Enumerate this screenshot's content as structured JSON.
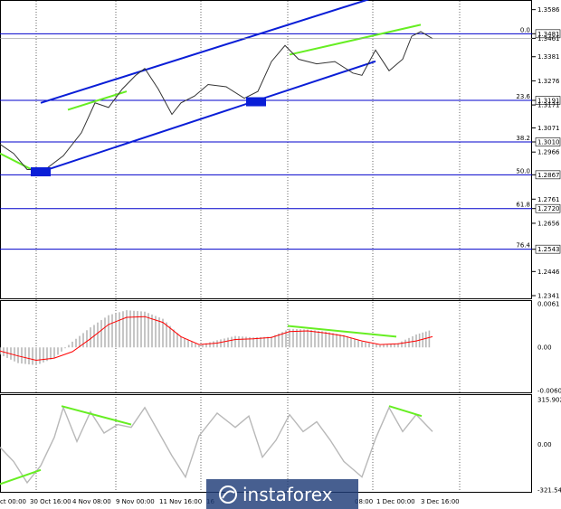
{
  "colors": {
    "grid": "#000000",
    "fib_level": "#0000cc",
    "channel": "#0a1ed7",
    "divergence": "#66ee22",
    "price_line": "#333333",
    "macd_hist": "#b8b8b8",
    "signal": "#ff0000",
    "oscillator": "#b8b8b8",
    "watermark_bg": "#1e3c78"
  },
  "price_panel": {
    "current_price": "1.3461",
    "y_ticks": [
      "1.3586",
      "1.3481",
      "1.3461",
      "1.3381",
      "1.3276",
      "1.3191",
      "1.3171",
      "1.3071",
      "1.3010",
      "1.2966",
      "1.2867",
      "1.2761",
      "1.2720",
      "1.2656",
      "1.2543",
      "1.2446",
      "1.2341"
    ],
    "fib_levels": [
      {
        "label": "0.0",
        "price": "1.3481"
      },
      {
        "label": "23.6",
        "price": "1.3191"
      },
      {
        "label": "38.2",
        "price": "1.3010"
      },
      {
        "label": "50.0",
        "price": "1.2867"
      },
      {
        "label": "61.8",
        "price": "1.2720"
      },
      {
        "label": "76.4",
        "price": "1.2543"
      }
    ]
  },
  "macd_panel": {
    "y_ticks": [
      "0.0061",
      "0.00",
      "-0.00604"
    ]
  },
  "osc_panel": {
    "y_ticks": [
      "315.9023",
      "0.00",
      "-321.5473"
    ]
  },
  "x_ticks": [
    "ct 00:00",
    "30 Oct 16:00",
    "4 Nov 08:00",
    "9 Nov 00:00",
    "11 Nov 16:00",
    "16",
    "08:00",
    "1 Dec 00:00",
    "3 Dec 16:00"
  ],
  "watermark": "instaforex",
  "chart_data": [
    {
      "type": "line",
      "name": "price",
      "x_ticks": [
        "ct 00:00",
        "30 Oct 16:00",
        "4 Nov 08:00",
        "9 Nov 00:00",
        "11 Nov 16:00",
        "16",
        "08:00",
        "1 Dec 00:00",
        "3 Dec 16:00"
      ],
      "y_range": [
        1.2341,
        1.3586
      ],
      "x": [
        0,
        15,
        30,
        50,
        70,
        90,
        105,
        120,
        135,
        150,
        160,
        175,
        190,
        200,
        215,
        230,
        250,
        270,
        285,
        300,
        315,
        330,
        350,
        370,
        390,
        400,
        415,
        430,
        445,
        455,
        465,
        478
      ],
      "values": [
        1.3,
        1.296,
        1.289,
        1.289,
        1.295,
        1.305,
        1.318,
        1.316,
        1.324,
        1.33,
        1.333,
        1.324,
        1.313,
        1.318,
        1.321,
        1.326,
        1.325,
        1.32,
        1.323,
        1.336,
        1.343,
        1.337,
        1.335,
        1.336,
        1.331,
        1.33,
        1.341,
        1.332,
        1.337,
        1.347,
        1.349,
        1.346
      ],
      "fib_retracement": {
        "0.0": 1.3481,
        "23.6": 1.3191,
        "38.2": 1.301,
        "50.0": 1.2867,
        "61.8": 1.272,
        "76.4": 1.2543
      },
      "channel": {
        "upper": {
          "x": [
            45,
            415
          ],
          "y": [
            1.318,
            1.364
          ]
        },
        "lower": {
          "x": [
            45,
            415
          ],
          "y": [
            1.288,
            1.3361
          ]
        }
      },
      "divergence_lines": [
        {
          "x": [
            0,
            45
          ],
          "y": [
            1.296,
            1.287
          ]
        },
        {
          "x": [
            75,
            140
          ],
          "y": [
            1.315,
            1.323
          ]
        },
        {
          "x": [
            320,
            465
          ],
          "y": [
            1.339,
            1.352
          ]
        }
      ],
      "grid": true
    },
    {
      "type": "bar",
      "name": "macd",
      "y_range": [
        -0.00604,
        0.0061
      ],
      "x": [
        0,
        20,
        40,
        60,
        80,
        100,
        120,
        140,
        160,
        180,
        200,
        220,
        240,
        260,
        280,
        300,
        320,
        340,
        360,
        380,
        400,
        420,
        440,
        460,
        478
      ],
      "values": [
        -0.001,
        -0.0022,
        -0.0025,
        -0.0015,
        0.0008,
        0.0028,
        0.0045,
        0.0052,
        0.005,
        0.004,
        0.0015,
        0.0003,
        0.001,
        0.0016,
        0.0014,
        0.0015,
        0.0026,
        0.0025,
        0.0022,
        0.0017,
        0.0008,
        0.0003,
        0.0006,
        0.0018,
        0.0025
      ],
      "signal": [
        -0.0005,
        -0.0012,
        -0.0018,
        -0.0015,
        -0.0006,
        0.0012,
        0.0032,
        0.0042,
        0.0043,
        0.0035,
        0.0015,
        0.0004,
        0.0006,
        0.0011,
        0.0012,
        0.0014,
        0.0022,
        0.0023,
        0.002,
        0.0016,
        0.0009,
        0.0004,
        0.0005,
        0.0009,
        0.0015
      ],
      "divergence_lines": [
        {
          "x": [
            318,
            438
          ],
          "y": [
            0.003,
            0.0015
          ]
        }
      ],
      "grid": true
    },
    {
      "type": "line",
      "name": "oscillator",
      "y_range": [
        -321.5473,
        315.9023
      ],
      "x": [
        0,
        15,
        30,
        45,
        60,
        70,
        85,
        100,
        115,
        130,
        145,
        160,
        175,
        190,
        205,
        220,
        240,
        260,
        275,
        290,
        305,
        320,
        335,
        350,
        365,
        380,
        400,
        415,
        430,
        445,
        460,
        478
      ],
      "values": [
        -20,
        -120,
        -270,
        -150,
        50,
        260,
        20,
        230,
        80,
        140,
        120,
        260,
        90,
        -80,
        -230,
        60,
        220,
        120,
        200,
        -90,
        30,
        210,
        90,
        160,
        30,
        -120,
        -230,
        40,
        260,
        90,
        210,
        90
      ],
      "divergence_lines": [
        {
          "x": [
            0,
            45
          ],
          "y": [
            -280,
            -180
          ]
        },
        {
          "x": [
            68,
            145
          ],
          "y": [
            270,
            140
          ]
        },
        {
          "x": [
            430,
            466
          ],
          "y": [
            270,
            200
          ]
        }
      ],
      "grid": true
    }
  ]
}
